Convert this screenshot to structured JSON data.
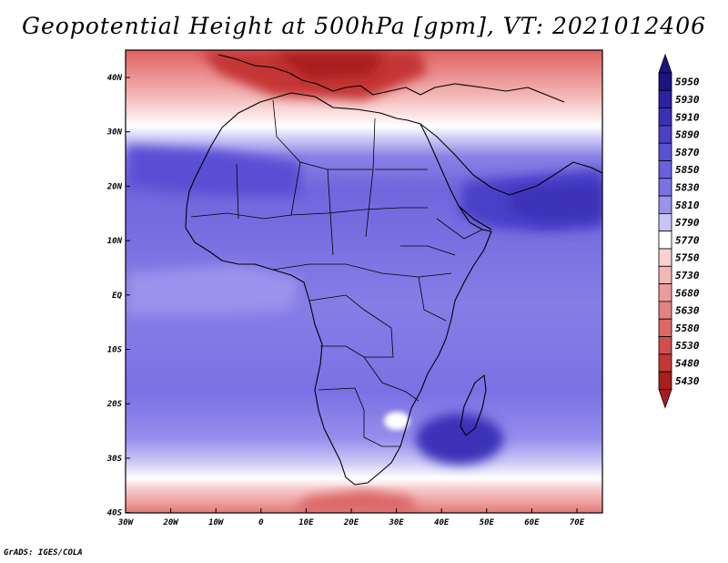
{
  "title": "Geopotential Height at 500hPa [gpm], VT: 2021012406",
  "footer": "GrADS: IGES/COLA",
  "map": {
    "variable": "Geopotential Height",
    "level": "500hPa",
    "units": "gpm",
    "valid_time": "2021012406",
    "region": "Africa",
    "lat_labels": [
      "40N",
      "30N",
      "20N",
      "10N",
      "EQ",
      "10S",
      "20S",
      "30S",
      "40S"
    ],
    "lon_labels": [
      "30W",
      "20W",
      "10W",
      "0",
      "10E",
      "20E",
      "30E",
      "40E",
      "50E",
      "60E",
      "70E"
    ]
  },
  "colorbar": {
    "levels": [
      {
        "label": "5950",
        "color": "#1c1480"
      },
      {
        "label": "5930",
        "color": "#2a22a0"
      },
      {
        "label": "5910",
        "color": "#3a30b8"
      },
      {
        "label": "5890",
        "color": "#4a40c8"
      },
      {
        "label": "5870",
        "color": "#5a50d4"
      },
      {
        "label": "5850",
        "color": "#6a60dc"
      },
      {
        "label": "5830",
        "color": "#7a72e4"
      },
      {
        "label": "5810",
        "color": "#9a92ec"
      },
      {
        "label": "5790",
        "color": "#c8c4f6"
      },
      {
        "label": "5770",
        "color": "#ffffff"
      },
      {
        "label": "5750",
        "color": "#f8d2d2"
      },
      {
        "label": "5730",
        "color": "#f2b6b6"
      },
      {
        "label": "5680",
        "color": "#ec9c9c"
      },
      {
        "label": "5630",
        "color": "#e48282"
      },
      {
        "label": "5580",
        "color": "#dc6868"
      },
      {
        "label": "5530",
        "color": "#d24e4e"
      },
      {
        "label": "5480",
        "color": "#c43636"
      },
      {
        "label": "5430",
        "color": "#a81e1e"
      }
    ],
    "max_arrow_color": "#1c1480",
    "min_arrow_color": "#a81e1e"
  }
}
